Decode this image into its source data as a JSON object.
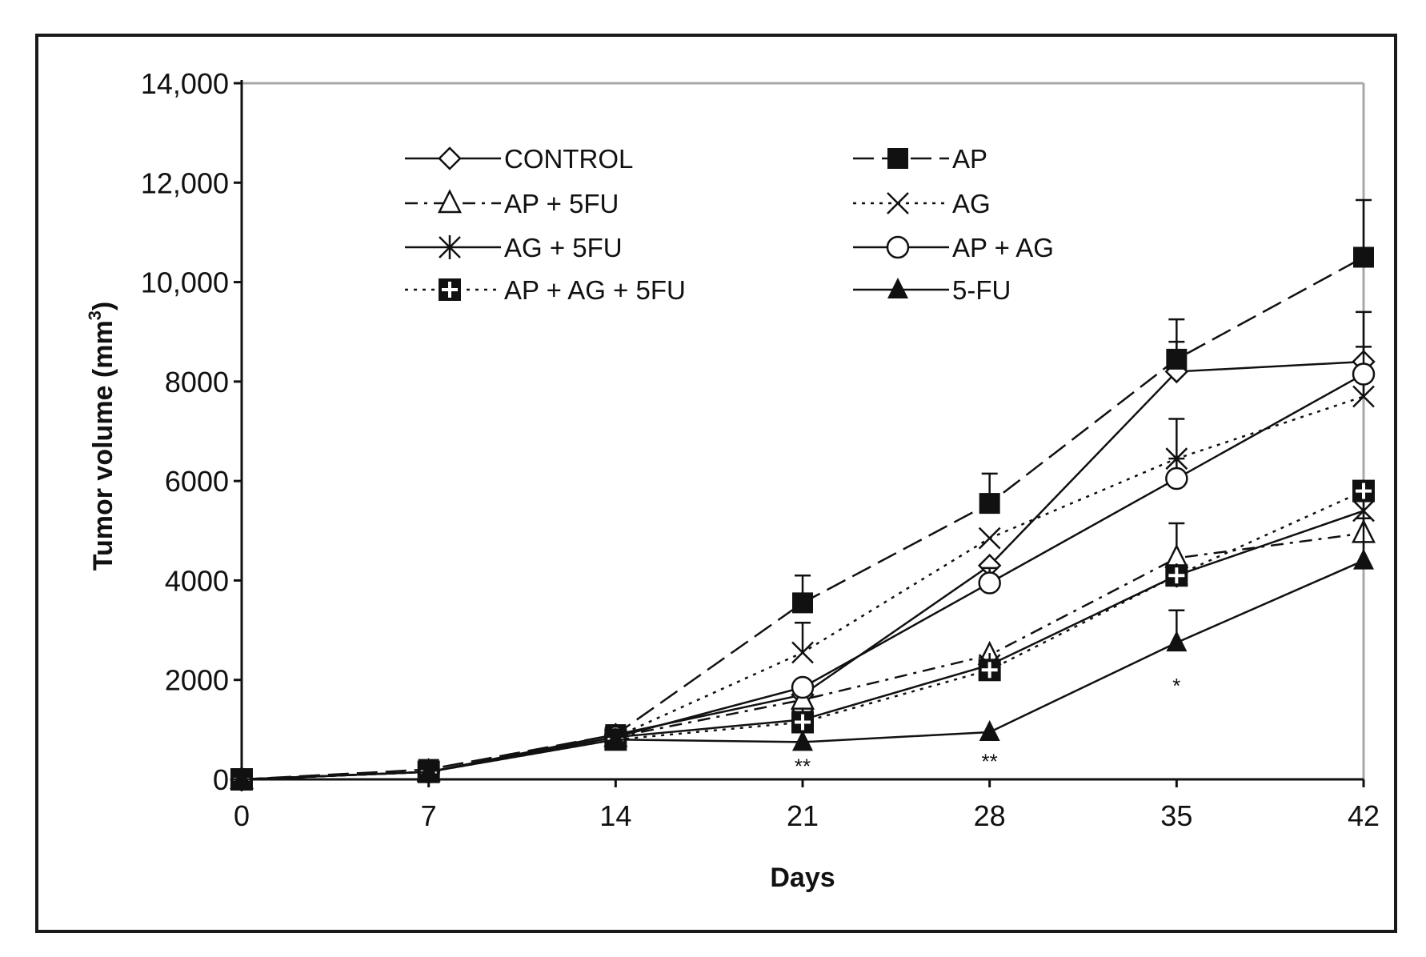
{
  "chart_data": {
    "type": "line",
    "title": "",
    "xlabel": "Days",
    "ylabel": "Tumor volume (mm",
    "ylabel_sup": "3",
    "ylabel_close": ")",
    "x": [
      0,
      7,
      14,
      21,
      28,
      35,
      42
    ],
    "xlim": [
      0,
      42
    ],
    "ylim": [
      0,
      14000
    ],
    "x_tick_labels": [
      "0",
      "7",
      "14",
      "21",
      "28",
      "35",
      "42"
    ],
    "y_ticks": [
      0,
      2000,
      4000,
      6000,
      8000,
      10000,
      12000,
      14000
    ],
    "y_tick_labels": [
      "0",
      "2000",
      "4000",
      "6000",
      "8000",
      "10,000",
      "12,000",
      "14,000"
    ],
    "legend_position": "top (inside plot, two columns)",
    "series": [
      {
        "name": "CONTROL",
        "marker": "diamond-open",
        "line": "solid",
        "values": [
          0,
          150,
          900,
          1700,
          4300,
          8200,
          8400
        ],
        "err": [
          0,
          0,
          0,
          0,
          0,
          600,
          1000
        ]
      },
      {
        "name": "AP",
        "marker": "square-filled",
        "line": "longdash",
        "values": [
          0,
          200,
          900,
          3550,
          5550,
          8450,
          10500
        ],
        "err": [
          0,
          0,
          0,
          550,
          600,
          800,
          1150
        ]
      },
      {
        "name": "AP + 5FU",
        "marker": "triangle-open",
        "line": "dashdot",
        "values": [
          0,
          150,
          850,
          1600,
          2500,
          4450,
          4950
        ],
        "err": [
          0,
          0,
          0,
          0,
          0,
          700,
          0
        ]
      },
      {
        "name": "AG",
        "marker": "x",
        "line": "dotted",
        "values": [
          0,
          150,
          850,
          2550,
          4850,
          6450,
          7700
        ],
        "err": [
          0,
          0,
          0,
          600,
          0,
          800,
          1000
        ]
      },
      {
        "name": "AG + 5FU",
        "marker": "asterisk",
        "line": "solid",
        "values": [
          0,
          150,
          850,
          1200,
          2300,
          4100,
          5400
        ],
        "err": [
          0,
          0,
          0,
          0,
          0,
          0,
          0
        ]
      },
      {
        "name": "AP + AG",
        "marker": "circle-open",
        "line": "solid",
        "values": [
          0,
          150,
          850,
          1850,
          3950,
          6050,
          8150
        ],
        "err": [
          0,
          0,
          0,
          0,
          300,
          400,
          0
        ]
      },
      {
        "name": "AP + AG + 5FU",
        "marker": "square-plus",
        "line": "dotted",
        "values": [
          0,
          150,
          800,
          1150,
          2200,
          4100,
          5800
        ],
        "err": [
          0,
          0,
          0,
          0,
          0,
          0,
          0
        ]
      },
      {
        "name": "5-FU",
        "marker": "triangle-filled",
        "line": "solid",
        "values": [
          0,
          150,
          800,
          750,
          950,
          2750,
          4400
        ],
        "err": [
          0,
          0,
          0,
          0,
          0,
          650,
          850
        ]
      }
    ],
    "annotations": [
      {
        "x": 21,
        "y": 280,
        "text": "**"
      },
      {
        "x": 28,
        "y": 380,
        "text": "**"
      },
      {
        "x": 35,
        "y": 1900,
        "text": "*"
      }
    ]
  }
}
